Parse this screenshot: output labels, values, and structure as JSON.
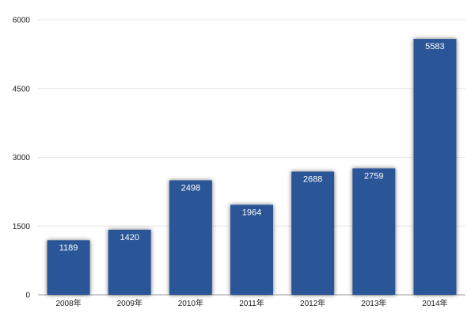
{
  "chart_data": {
    "type": "bar",
    "categories": [
      "2008年",
      "2009年",
      "2010年",
      "2011年",
      "2012年",
      "2013年",
      "2014年"
    ],
    "values": [
      1189,
      1420,
      2498,
      1964,
      2688,
      2759,
      5583
    ],
    "data_labels": [
      "1189",
      "1420",
      "2498",
      "1964",
      "2688",
      "2759",
      "5583"
    ],
    "title": "",
    "xlabel": "",
    "ylabel": "",
    "ylim": [
      0,
      6000
    ],
    "yticks": [
      0,
      1500,
      3000,
      4500,
      6000
    ],
    "ytick_labels": [
      "0",
      "1500",
      "3000",
      "4500",
      "6000"
    ],
    "grid": true,
    "bar_color": "#2a5597"
  }
}
